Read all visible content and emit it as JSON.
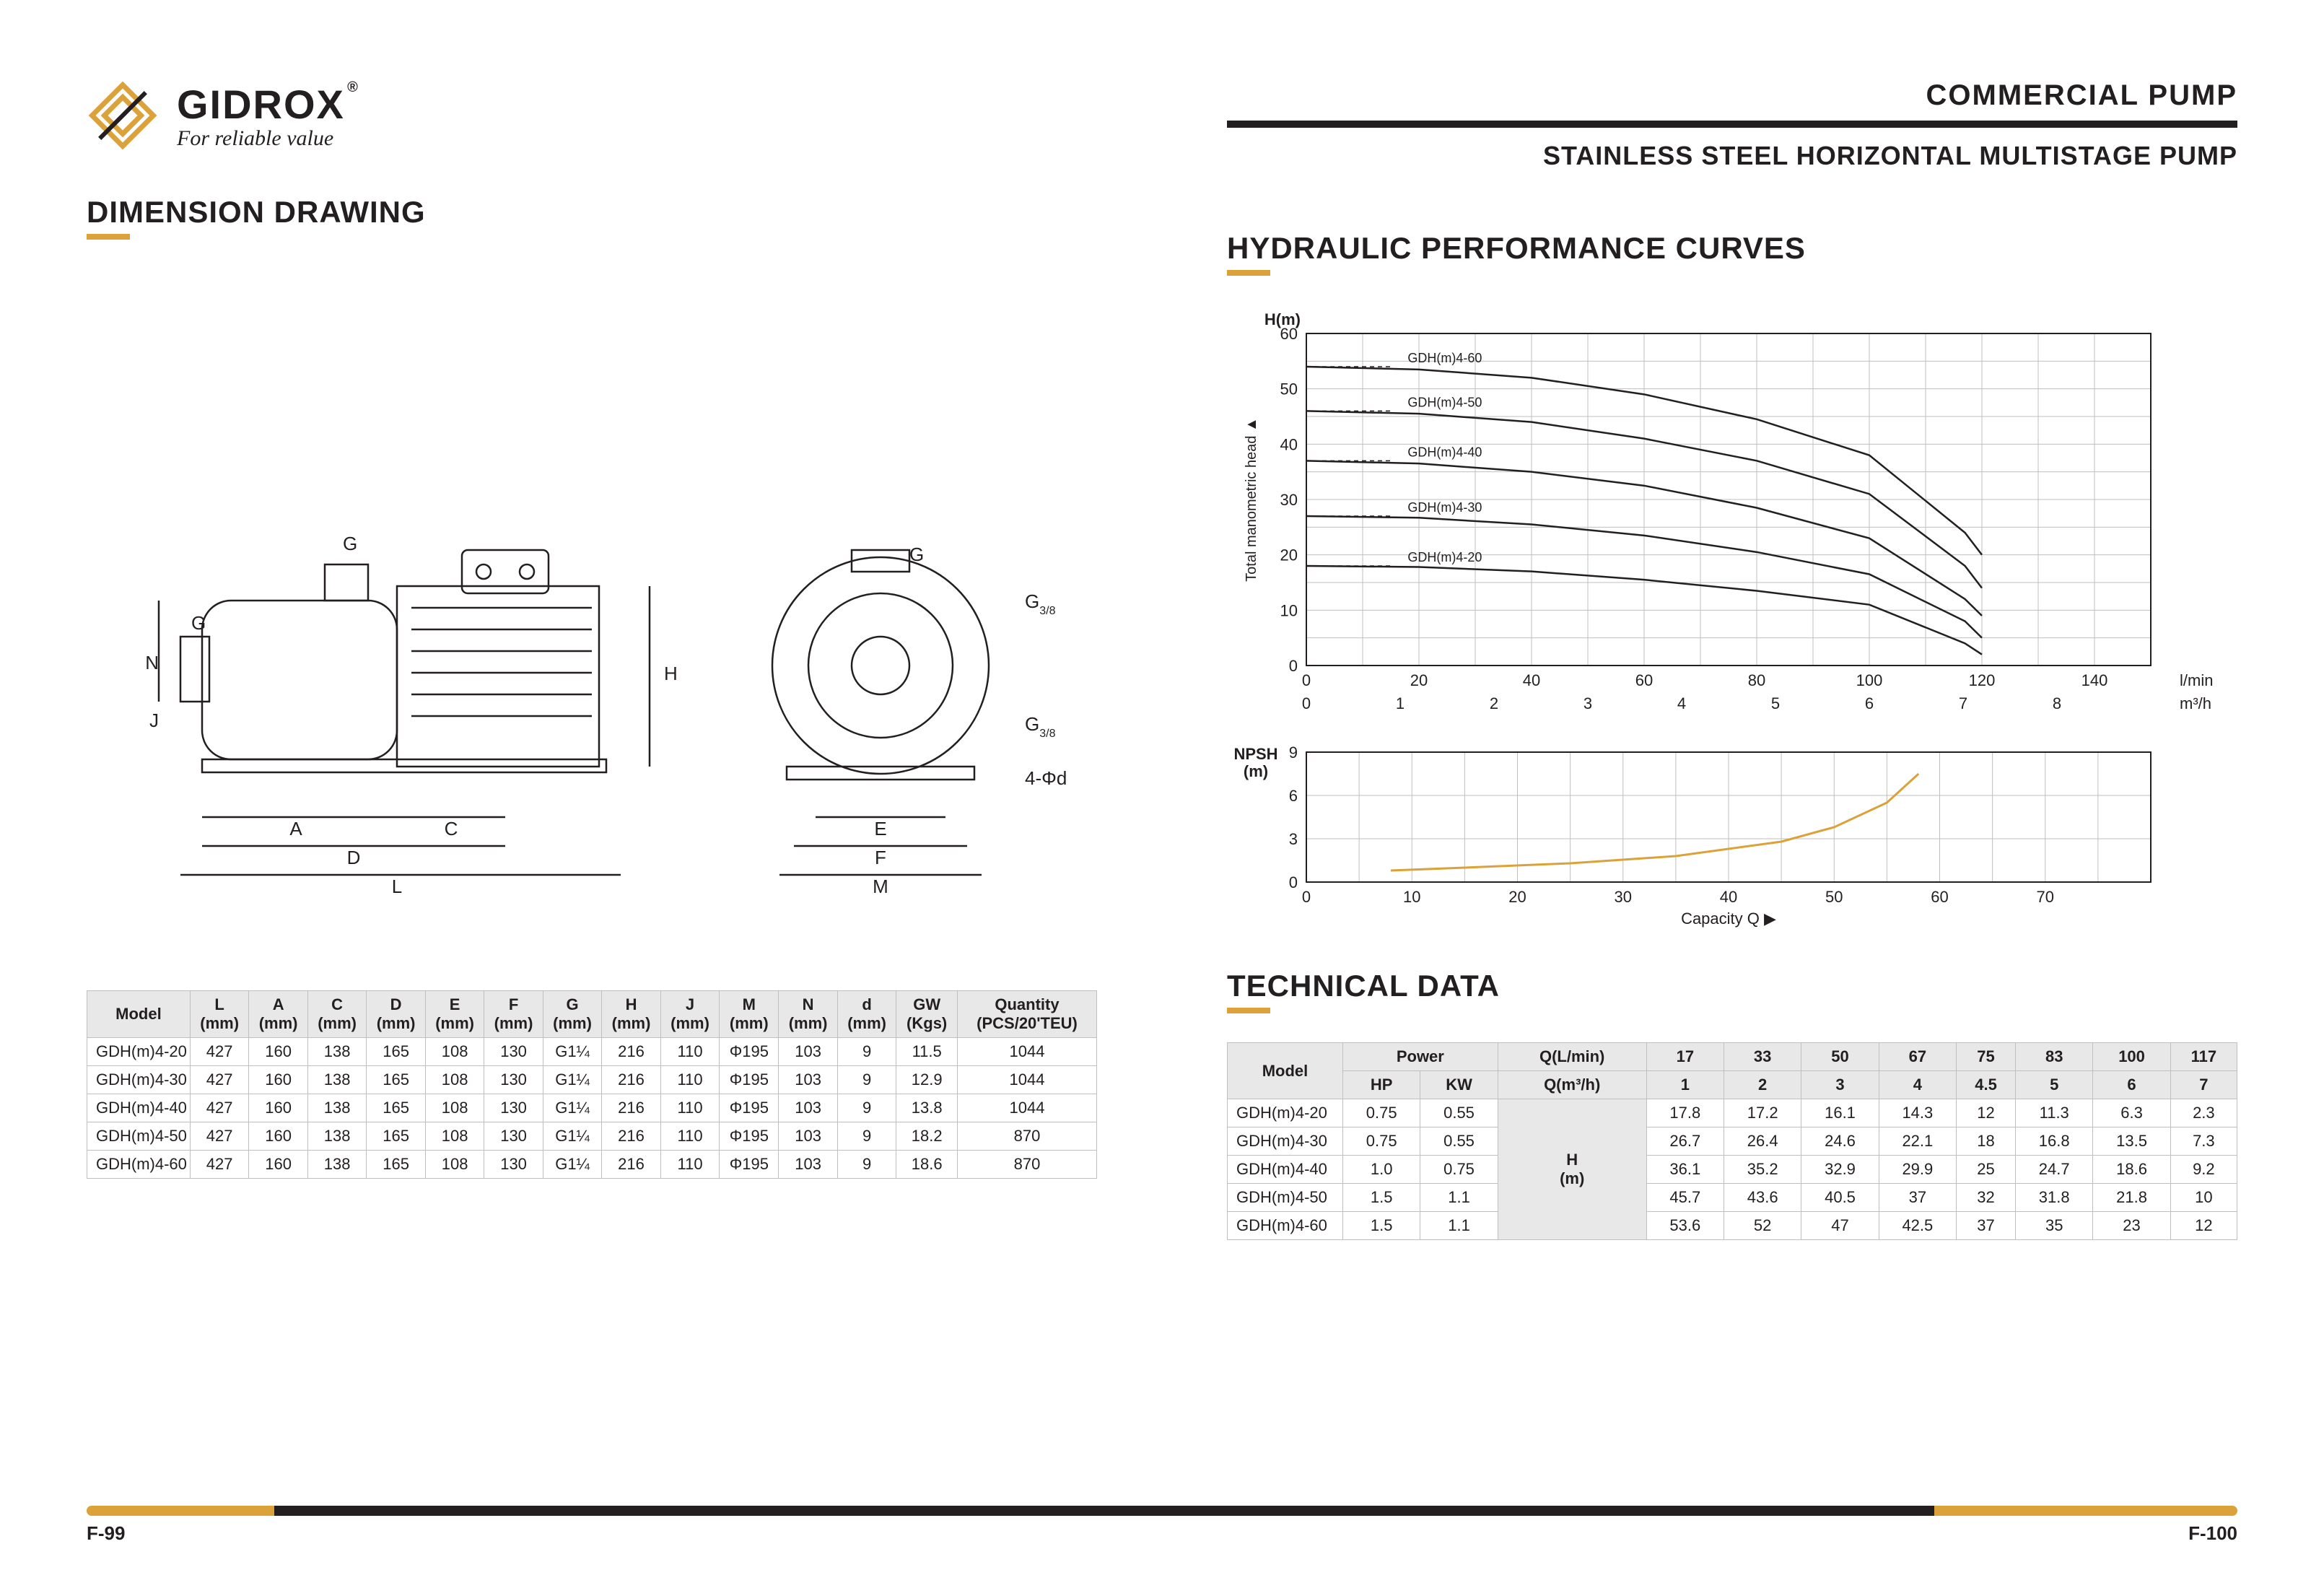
{
  "brand": {
    "name": "GIDROX",
    "reg": "®",
    "tagline": "For reliable value",
    "accent_color": "#dca23a",
    "text_color": "#231f20"
  },
  "header": {
    "category": "COMMERCIAL  PUMP",
    "subtitle": "STAINLESS STEEL HORIZONTAL  MULTISTAGE  PUMP"
  },
  "sections": {
    "dimension": "DIMENSION DRAWING",
    "curves": "HYDRAULIC PERFORMANCE CURVES",
    "techdata": "TECHNICAL DATA"
  },
  "drawing": {
    "dimension_letters": [
      "G",
      "N",
      "G",
      "J",
      "A",
      "C",
      "D",
      "L",
      "H",
      "G",
      "G",
      "E",
      "F",
      "M"
    ],
    "thread_labels": [
      "G3/8",
      "G3/8",
      "4-Φd"
    ]
  },
  "dim_table": {
    "headers": [
      "Model",
      "L\n(mm)",
      "A\n(mm)",
      "C\n(mm)",
      "D\n(mm)",
      "E\n(mm)",
      "F\n(mm)",
      "G\n(mm)",
      "H\n(mm)",
      "J\n(mm)",
      "M\n(mm)",
      "N\n(mm)",
      "d\n(mm)",
      "GW\n(Kgs)",
      "Quantity\n(PCS/20'TEU)"
    ],
    "rows": [
      [
        "GDH(m)4-20",
        "427",
        "160",
        "138",
        "165",
        "108",
        "130",
        "G1¼",
        "216",
        "110",
        "Φ195",
        "103",
        "9",
        "11.5",
        "1044"
      ],
      [
        "GDH(m)4-30",
        "427",
        "160",
        "138",
        "165",
        "108",
        "130",
        "G1¼",
        "216",
        "110",
        "Φ195",
        "103",
        "9",
        "12.9",
        "1044"
      ],
      [
        "GDH(m)4-40",
        "427",
        "160",
        "138",
        "165",
        "108",
        "130",
        "G1¼",
        "216",
        "110",
        "Φ195",
        "103",
        "9",
        "13.8",
        "1044"
      ],
      [
        "GDH(m)4-50",
        "427",
        "160",
        "138",
        "165",
        "108",
        "130",
        "G1¼",
        "216",
        "110",
        "Φ195",
        "103",
        "9",
        "18.2",
        "870"
      ],
      [
        "GDH(m)4-60",
        "427",
        "160",
        "138",
        "165",
        "108",
        "130",
        "G1¼",
        "216",
        "110",
        "Φ195",
        "103",
        "9",
        "18.6",
        "870"
      ]
    ]
  },
  "head_chart": {
    "type": "line",
    "title_y": "Total manometric head  ▲",
    "ylabel": "H(m)",
    "ylim": [
      0,
      60
    ],
    "ytick_step": 10,
    "x_top_label": "l/min",
    "x_top_lim": [
      0,
      150
    ],
    "x_top_ticks": [
      0,
      20,
      40,
      60,
      80,
      100,
      120,
      140
    ],
    "x_bot_label": "m³/h",
    "x_bot_lim": [
      0,
      9
    ],
    "x_bot_ticks": [
      0,
      1,
      2,
      3,
      4,
      5,
      6,
      7,
      8
    ],
    "grid_color": "#bfbfbf",
    "background": "#ffffff",
    "line_color": "#231f20",
    "series": [
      {
        "name": "GDH(m)4-60",
        "points": [
          [
            0,
            54
          ],
          [
            20,
            53.5
          ],
          [
            40,
            52
          ],
          [
            60,
            49
          ],
          [
            80,
            44.5
          ],
          [
            100,
            38
          ],
          [
            117,
            24
          ],
          [
            120,
            20
          ]
        ]
      },
      {
        "name": "GDH(m)4-50",
        "points": [
          [
            0,
            46
          ],
          [
            20,
            45.5
          ],
          [
            40,
            44
          ],
          [
            60,
            41
          ],
          [
            80,
            37
          ],
          [
            100,
            31
          ],
          [
            117,
            18
          ],
          [
            120,
            14
          ]
        ]
      },
      {
        "name": "GDH(m)4-40",
        "points": [
          [
            0,
            37
          ],
          [
            20,
            36.5
          ],
          [
            40,
            35
          ],
          [
            60,
            32.5
          ],
          [
            80,
            28.5
          ],
          [
            100,
            23
          ],
          [
            117,
            12
          ],
          [
            120,
            9
          ]
        ]
      },
      {
        "name": "GDH(m)4-30",
        "points": [
          [
            0,
            27
          ],
          [
            20,
            26.7
          ],
          [
            40,
            25.5
          ],
          [
            60,
            23.5
          ],
          [
            80,
            20.5
          ],
          [
            100,
            16.5
          ],
          [
            117,
            8
          ],
          [
            120,
            5
          ]
        ]
      },
      {
        "name": "GDH(m)4-20",
        "points": [
          [
            0,
            18
          ],
          [
            20,
            17.8
          ],
          [
            40,
            17
          ],
          [
            60,
            15.5
          ],
          [
            80,
            13.5
          ],
          [
            100,
            11
          ],
          [
            117,
            4
          ],
          [
            120,
            2
          ]
        ]
      }
    ]
  },
  "npsh_chart": {
    "type": "line",
    "ylabel": "NPSH\n(m)",
    "ylim": [
      0,
      9
    ],
    "ytick_step": 3,
    "xlabel": "Capacity  Q  ▶",
    "xlim": [
      0,
      80
    ],
    "xticks": [
      0,
      10,
      20,
      30,
      40,
      50,
      60,
      70
    ],
    "grid_color": "#bfbfbf",
    "line_color": "#dca23a",
    "points": [
      [
        8,
        0.8
      ],
      [
        15,
        1.0
      ],
      [
        25,
        1.3
      ],
      [
        35,
        1.8
      ],
      [
        45,
        2.8
      ],
      [
        50,
        3.8
      ],
      [
        55,
        5.5
      ],
      [
        58,
        7.5
      ]
    ]
  },
  "tech_table": {
    "header_row1": [
      "Model",
      "Power",
      "Q(L/min)",
      "17",
      "33",
      "50",
      "67",
      "75",
      "83",
      "100",
      "117"
    ],
    "header_row2": [
      "HP",
      "KW",
      "Q(m³/h)",
      "1",
      "2",
      "3",
      "4",
      "4.5",
      "5",
      "6",
      "7"
    ],
    "row_group_label": "H\n(m)",
    "rows": [
      [
        "GDH(m)4-20",
        "0.75",
        "0.55",
        "17.8",
        "17.2",
        "16.1",
        "14.3",
        "12",
        "11.3",
        "6.3",
        "2.3"
      ],
      [
        "GDH(m)4-30",
        "0.75",
        "0.55",
        "26.7",
        "26.4",
        "24.6",
        "22.1",
        "18",
        "16.8",
        "13.5",
        "7.3"
      ],
      [
        "GDH(m)4-40",
        "1.0",
        "0.75",
        "36.1",
        "35.2",
        "32.9",
        "29.9",
        "25",
        "24.7",
        "18.6",
        "9.2"
      ],
      [
        "GDH(m)4-50",
        "1.5",
        "1.1",
        "45.7",
        "43.6",
        "40.5",
        "37",
        "32",
        "31.8",
        "21.8",
        "10"
      ],
      [
        "GDH(m)4-60",
        "1.5",
        "1.1",
        "53.6",
        "52",
        "47",
        "42.5",
        "37",
        "35",
        "23",
        "12"
      ]
    ]
  },
  "footer": {
    "left_page": "F-99",
    "right_page": "F-100"
  }
}
